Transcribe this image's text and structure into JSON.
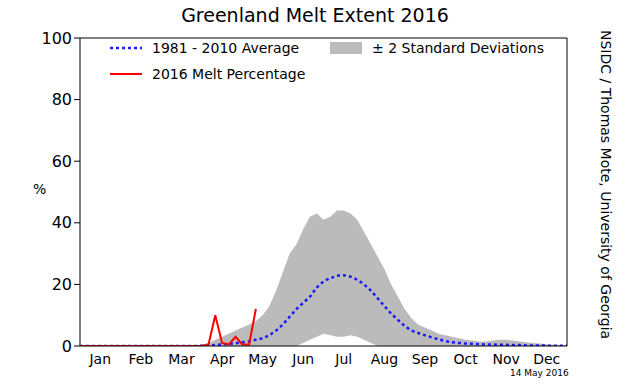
{
  "chart_data": {
    "type": "line",
    "title": "Greenland Melt Extent 2016",
    "y_label": "%",
    "annotations": [
      "NSIDC / Thomas Mote, University of Georgia",
      "14 May 2016"
    ],
    "legend": "upper center",
    "grid": false,
    "categories": [
      null,
      null,
      null,
      "Jan",
      null,
      null,
      null,
      null,
      null,
      "Feb",
      null,
      null,
      null,
      null,
      null,
      "Mar",
      null,
      null,
      null,
      null,
      null,
      "Apr",
      null,
      null,
      null,
      null,
      null,
      "May",
      null,
      null,
      null,
      null,
      null,
      "Jun",
      null,
      null,
      null,
      null,
      null,
      "Jul",
      null,
      null,
      null,
      null,
      null,
      "Aug",
      null,
      null,
      null,
      null,
      null,
      "Sep",
      null,
      null,
      null,
      null,
      null,
      "Oct",
      null,
      null,
      null,
      null,
      null,
      "Nov",
      null,
      null,
      null,
      null,
      null,
      "Dec",
      null,
      null,
      null
    ],
    "ylim": [
      0,
      100
    ],
    "yticks": [
      0,
      20,
      40,
      60,
      80,
      100
    ],
    "series": [
      {
        "name": "1981 - 2010 Average",
        "type": "line",
        "line_style": "dotted",
        "color": "#1a1aff",
        "values": [
          0,
          0,
          0,
          0,
          0,
          0,
          0,
          0,
          0,
          0,
          0,
          0,
          0,
          0,
          0,
          0,
          0,
          0,
          0.1,
          0.2,
          0.3,
          0.5,
          0.7,
          0.9,
          1.2,
          1.5,
          2,
          2.5,
          3.5,
          5,
          7,
          9.5,
          12,
          14,
          16,
          19,
          21,
          22,
          22.8,
          23,
          22.5,
          21.5,
          20,
          18,
          15.5,
          13,
          10.5,
          8.5,
          6.5,
          5,
          4.2,
          3.5,
          2.8,
          2.2,
          1.6,
          1.2,
          1,
          0.8,
          0.7,
          0.6,
          0.5,
          0.5,
          0.4,
          0.4,
          0.3,
          0.3,
          0.2,
          0.2,
          0.2,
          0.1,
          0.1,
          0.1,
          0.1
        ]
      },
      {
        "name": "2016 Melt Percentage",
        "type": "line",
        "line_style": "solid",
        "color": "#ff0000",
        "values": [
          0,
          0,
          0,
          0,
          0,
          0,
          0,
          0,
          0,
          0,
          0,
          0,
          0,
          0,
          0,
          0,
          0,
          0,
          0,
          0.5,
          10,
          1,
          0.5,
          3,
          0.5,
          0.5,
          12,
          null,
          null,
          null,
          null,
          null,
          null,
          null,
          null,
          null,
          null,
          null,
          null,
          null,
          null,
          null,
          null,
          null,
          null,
          null,
          null,
          null,
          null,
          null,
          null,
          null,
          null,
          null,
          null,
          null,
          null,
          null,
          null,
          null,
          null,
          null,
          null,
          null,
          null,
          null,
          null,
          null,
          null,
          null,
          null,
          null,
          null
        ]
      },
      {
        "name": "± 2 Standard Deviations",
        "type": "band",
        "color": "#bbbbbb",
        "lower": [
          0,
          0,
          0,
          0,
          0,
          0,
          0,
          0,
          0,
          0,
          0,
          0,
          0,
          0,
          0,
          0,
          0,
          0,
          0,
          0,
          0,
          0,
          0,
          0,
          0,
          0,
          0,
          0,
          0,
          0,
          0,
          0,
          0,
          1,
          2,
          3,
          4,
          3.5,
          3,
          3,
          3.5,
          3,
          2,
          1,
          0,
          0,
          0,
          0,
          0,
          0,
          0,
          0,
          0,
          0,
          0,
          0,
          0,
          0,
          0,
          0,
          0,
          0,
          0,
          0,
          0,
          0,
          0,
          0,
          0,
          0,
          0,
          0,
          0
        ],
        "upper": [
          0,
          0,
          0,
          0,
          0,
          0,
          0,
          0,
          0,
          0,
          0,
          0,
          0,
          0,
          0,
          0,
          0,
          0,
          0.5,
          1,
          2,
          3,
          4,
          5,
          6,
          7,
          8,
          10,
          13,
          18,
          24,
          30,
          33,
          38,
          42,
          43,
          41,
          42,
          44,
          44,
          43,
          41,
          37,
          33,
          29,
          25,
          20,
          16,
          12,
          9,
          7,
          6,
          5,
          4,
          3.5,
          3,
          2.5,
          2,
          1.8,
          1.5,
          1.5,
          1.8,
          2,
          2,
          1.8,
          1.5,
          1.2,
          1,
          0.8,
          0.6,
          0.4,
          0.3,
          0.2
        ]
      }
    ]
  }
}
